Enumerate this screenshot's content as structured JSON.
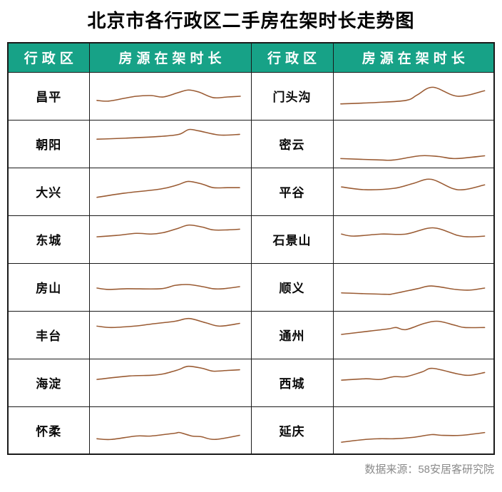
{
  "page": {
    "title": "北京市各行政区二手房在架时长走势图",
    "source_note": "数据来源：58安居客研究院"
  },
  "colors": {
    "header_bg": "#17A287",
    "header_fg": "#FFFFFF",
    "line": "#9A5B33",
    "border": "#1a1a1a",
    "title": "#000000",
    "source": "#8a8a8a"
  },
  "table": {
    "headers": [
      "行政区",
      "房源在架时长",
      "行政区",
      "房源在架时长"
    ]
  },
  "chart_data": {
    "type": "line",
    "title": "北京市各行政区二手房在架时长走势图",
    "xlabel": "",
    "ylabel": "房源在架时长",
    "legend_position": "none",
    "grid": false,
    "note": "16 axis-less sparklines, one per district; no numeric scale shown. Points are [x, h] with x = horizontal position 0-226 (time, left to right) and h = relative on-shelf duration 0-68 (higher = longer).",
    "series": [
      {
        "name": "昌平",
        "points": [
          [
            10,
            28
          ],
          [
            26,
            27
          ],
          [
            48,
            31
          ],
          [
            65,
            34
          ],
          [
            86,
            35
          ],
          [
            103,
            33
          ],
          [
            123,
            39
          ],
          [
            138,
            43
          ],
          [
            153,
            40
          ],
          [
            173,
            32
          ],
          [
            193,
            33
          ],
          [
            211,
            34
          ]
        ]
      },
      {
        "name": "朝阳",
        "points": [
          [
            10,
            41
          ],
          [
            50,
            42.5
          ],
          [
            99,
            45
          ],
          [
            125,
            48
          ],
          [
            139,
            55
          ],
          [
            153,
            53
          ],
          [
            182,
            47
          ],
          [
            210,
            48
          ]
        ]
      },
      {
        "name": "大兴",
        "points": [
          [
            10,
            26
          ],
          [
            48,
            32
          ],
          [
            99,
            38
          ],
          [
            123,
            44
          ],
          [
            138,
            49
          ],
          [
            158,
            45
          ],
          [
            173,
            40
          ],
          [
            193,
            40
          ],
          [
            210,
            40
          ]
        ]
      },
      {
        "name": "东城",
        "points": [
          [
            10,
            38
          ],
          [
            37,
            40
          ],
          [
            65,
            43
          ],
          [
            86,
            42
          ],
          [
            103,
            44
          ],
          [
            123,
            50
          ],
          [
            139,
            55
          ],
          [
            158,
            52
          ],
          [
            173,
            48
          ],
          [
            193,
            48
          ],
          [
            210,
            49
          ]
        ]
      },
      {
        "name": "房山",
        "points": [
          [
            10,
            33
          ],
          [
            26,
            31
          ],
          [
            52,
            32
          ],
          [
            99,
            32
          ],
          [
            120,
            37
          ],
          [
            139,
            38
          ],
          [
            158,
            35
          ],
          [
            173,
            32
          ],
          [
            187,
            32
          ],
          [
            210,
            35
          ]
        ]
      },
      {
        "name": "丰台",
        "points": [
          [
            10,
            47
          ],
          [
            30,
            45
          ],
          [
            62,
            47
          ],
          [
            86,
            50
          ],
          [
            119,
            54
          ],
          [
            139,
            58
          ],
          [
            162,
            52
          ],
          [
            182,
            47
          ],
          [
            210,
            51
          ]
        ]
      },
      {
        "name": "海淀",
        "points": [
          [
            10,
            39
          ],
          [
            55,
            44
          ],
          [
            86,
            45
          ],
          [
            103,
            47
          ],
          [
            124,
            53
          ],
          [
            138,
            58
          ],
          [
            158,
            55
          ],
          [
            173,
            51
          ],
          [
            193,
            52
          ],
          [
            210,
            53
          ]
        ]
      },
      {
        "name": "怀柔",
        "points": [
          [
            10,
            22
          ],
          [
            30,
            21
          ],
          [
            65,
            26
          ],
          [
            86,
            26
          ],
          [
            119,
            30
          ],
          [
            126,
            31
          ],
          [
            143,
            26
          ],
          [
            156,
            25
          ],
          [
            175,
            21
          ],
          [
            210,
            27
          ]
        ]
      },
      {
        "name": "门头沟",
        "points": [
          [
            10,
            23
          ],
          [
            60,
            25
          ],
          [
            102,
            28
          ],
          [
            118,
            36
          ],
          [
            140,
            47
          ],
          [
            175,
            34
          ],
          [
            213,
            42
          ]
        ]
      },
      {
        "name": "密云",
        "points": [
          [
            10,
            13
          ],
          [
            65,
            11
          ],
          [
            85,
            11
          ],
          [
            122,
            17
          ],
          [
            148,
            16
          ],
          [
            172,
            13
          ],
          [
            213,
            17
          ]
        ]
      },
      {
        "name": "平谷",
        "points": [
          [
            11,
            41
          ],
          [
            45,
            37
          ],
          [
            85,
            39
          ],
          [
            112,
            46
          ],
          [
            138,
            52
          ],
          [
            175,
            37
          ],
          [
            213,
            44
          ]
        ]
      },
      {
        "name": "石景山",
        "points": [
          [
            11,
            42
          ],
          [
            28,
            39
          ],
          [
            67,
            42
          ],
          [
            102,
            42
          ],
          [
            140,
            51
          ],
          [
            175,
            40
          ],
          [
            191,
            38
          ],
          [
            213,
            39
          ]
        ]
      },
      {
        "name": "顺义",
        "points": [
          [
            11,
            26
          ],
          [
            72,
            24
          ],
          [
            85,
            25
          ],
          [
            118,
            32
          ],
          [
            138,
            36
          ],
          [
            172,
            31
          ],
          [
            192,
            30
          ],
          [
            213,
            33
          ]
        ]
      },
      {
        "name": "通州",
        "points": [
          [
            11,
            35
          ],
          [
            52,
            40
          ],
          [
            77,
            43
          ],
          [
            88,
            45
          ],
          [
            102,
            42
          ],
          [
            128,
            51
          ],
          [
            148,
            54
          ],
          [
            172,
            48
          ],
          [
            185,
            45
          ],
          [
            213,
            45
          ]
        ]
      },
      {
        "name": "西城",
        "points": [
          [
            11,
            38
          ],
          [
            45,
            40
          ],
          [
            65,
            39
          ],
          [
            85,
            43
          ],
          [
            102,
            43
          ],
          [
            125,
            50
          ],
          [
            140,
            55
          ],
          [
            175,
            47
          ],
          [
            192,
            45
          ],
          [
            213,
            49
          ]
        ]
      },
      {
        "name": "延庆",
        "points": [
          [
            11,
            17
          ],
          [
            45,
            21
          ],
          [
            65,
            22
          ],
          [
            85,
            22
          ],
          [
            112,
            24
          ],
          [
            138,
            28
          ],
          [
            152,
            27
          ],
          [
            180,
            27
          ],
          [
            213,
            31
          ]
        ]
      }
    ]
  }
}
